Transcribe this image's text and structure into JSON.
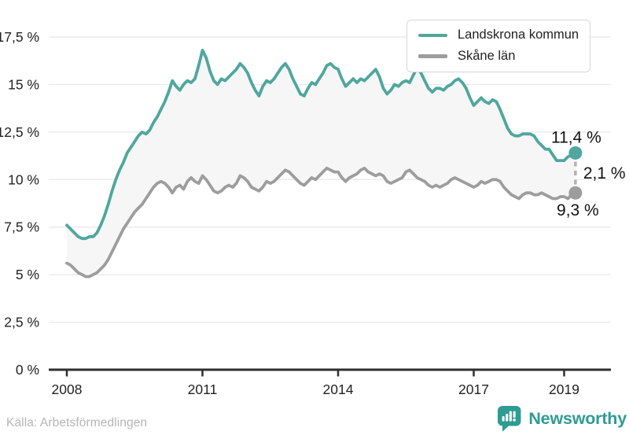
{
  "chart_data": {
    "type": "line",
    "frequency": "monthly",
    "x_start": "2008-01",
    "x_end": "2019-04",
    "x_axis": {
      "ticks": [
        {
          "year": 2008,
          "label": "2008"
        },
        {
          "year": 2011,
          "label": "2011"
        },
        {
          "year": 2014,
          "label": "2014"
        },
        {
          "year": 2017,
          "label": "2017"
        },
        {
          "year": 2019,
          "label": "2019"
        }
      ]
    },
    "y_axis": {
      "min": 0,
      "max": 17.5,
      "tick_step": 2.5,
      "unit": "%",
      "ticks": [
        {
          "value": 17.5,
          "label": "17,5 %"
        },
        {
          "value": 15,
          "label": "15 %"
        },
        {
          "value": 12.5,
          "label": "12,5 %"
        },
        {
          "value": 10,
          "label": "10 %"
        },
        {
          "value": 7.5,
          "label": "7,5 %"
        },
        {
          "value": 5,
          "label": "5 %"
        },
        {
          "value": 2.5,
          "label": "2,5 %"
        },
        {
          "value": 0,
          "label": "0 %"
        }
      ]
    },
    "series": [
      {
        "name": "Landskrona kommun",
        "color": "#4fa79e",
        "end_label": "11,4 %",
        "end_value": 11.4,
        "values": [
          7.6,
          7.4,
          7.2,
          7.0,
          6.9,
          6.9,
          7.0,
          7.0,
          7.2,
          7.6,
          8.1,
          8.7,
          9.4,
          10.0,
          10.5,
          10.9,
          11.4,
          11.7,
          12.0,
          12.3,
          12.5,
          12.4,
          12.6,
          13.0,
          13.3,
          13.7,
          14.1,
          14.6,
          15.2,
          14.9,
          14.7,
          15.0,
          15.2,
          15.1,
          15.3,
          16.0,
          16.8,
          16.4,
          15.7,
          15.2,
          15.0,
          15.3,
          15.2,
          15.4,
          15.6,
          15.8,
          16.1,
          15.9,
          15.6,
          15.1,
          14.7,
          14.4,
          14.9,
          15.2,
          15.1,
          15.3,
          15.6,
          15.9,
          16.1,
          15.8,
          15.3,
          14.9,
          14.5,
          14.4,
          14.8,
          15.1,
          15.0,
          15.3,
          15.6,
          16.0,
          16.1,
          15.9,
          15.8,
          15.3,
          14.9,
          15.1,
          15.3,
          15.1,
          15.3,
          15.2,
          15.4,
          15.6,
          15.8,
          15.4,
          14.8,
          14.5,
          14.7,
          15.0,
          14.9,
          15.1,
          15.2,
          15.1,
          15.5,
          15.9,
          15.6,
          15.2,
          14.8,
          14.6,
          14.8,
          14.8,
          14.7,
          14.9,
          15.0,
          15.2,
          15.3,
          15.1,
          14.8,
          14.3,
          13.9,
          14.1,
          14.3,
          14.1,
          14.0,
          14.2,
          14.1,
          13.7,
          13.2,
          12.7,
          12.4,
          12.3,
          12.3,
          12.4,
          12.4,
          12.4,
          12.3,
          12.0,
          11.8,
          11.6,
          11.6,
          11.3,
          11.0,
          11.0,
          11.0,
          11.2,
          11.3,
          11.4
        ]
      },
      {
        "name": "Skåne län",
        "color": "#9d9d9d",
        "end_label": "9,3 %",
        "end_value": 9.3,
        "values": [
          5.6,
          5.5,
          5.3,
          5.1,
          5.0,
          4.9,
          4.9,
          5.0,
          5.1,
          5.3,
          5.5,
          5.8,
          6.2,
          6.6,
          7.0,
          7.4,
          7.7,
          8.0,
          8.3,
          8.5,
          8.7,
          9.0,
          9.3,
          9.6,
          9.8,
          9.9,
          9.8,
          9.6,
          9.3,
          9.6,
          9.7,
          9.5,
          9.9,
          10.1,
          9.9,
          9.8,
          10.2,
          10.0,
          9.7,
          9.4,
          9.3,
          9.4,
          9.6,
          9.7,
          9.6,
          9.8,
          10.2,
          10.1,
          9.9,
          9.6,
          9.5,
          9.4,
          9.6,
          9.9,
          9.8,
          9.9,
          10.1,
          10.3,
          10.5,
          10.4,
          10.2,
          10.0,
          9.8,
          9.7,
          9.9,
          10.1,
          10.0,
          10.2,
          10.4,
          10.6,
          10.5,
          10.4,
          10.4,
          10.1,
          9.9,
          10.1,
          10.2,
          10.3,
          10.5,
          10.6,
          10.4,
          10.3,
          10.2,
          10.3,
          10.2,
          9.9,
          9.8,
          9.9,
          10.0,
          10.1,
          10.4,
          10.5,
          10.3,
          10.1,
          10.0,
          9.9,
          9.7,
          9.6,
          9.7,
          9.6,
          9.7,
          9.8,
          10.0,
          10.1,
          10.0,
          9.9,
          9.8,
          9.7,
          9.6,
          9.7,
          9.9,
          9.8,
          9.9,
          10.0,
          10.0,
          9.9,
          9.6,
          9.4,
          9.2,
          9.1,
          9.0,
          9.2,
          9.3,
          9.3,
          9.2,
          9.2,
          9.3,
          9.2,
          9.1,
          9.0,
          9.0,
          9.1,
          9.1,
          9.0,
          9.2,
          9.3
        ]
      }
    ],
    "gap_annotation": {
      "label": "2,1 %",
      "value": 2.1
    },
    "style": {
      "band_fill": "#f6f6f6",
      "gridline": "#e8e8e8",
      "axis": "#2f2f2f",
      "dash": "#b3b3b3",
      "text": "#222222",
      "annotation_text": "#111111"
    }
  },
  "legend": {
    "items": [
      {
        "label": "Landskrona kommun"
      },
      {
        "label": "Skåne län"
      }
    ]
  },
  "footer": {
    "source": "Källa: Arbetsförmedlingen",
    "brand": "Newsworthy"
  }
}
